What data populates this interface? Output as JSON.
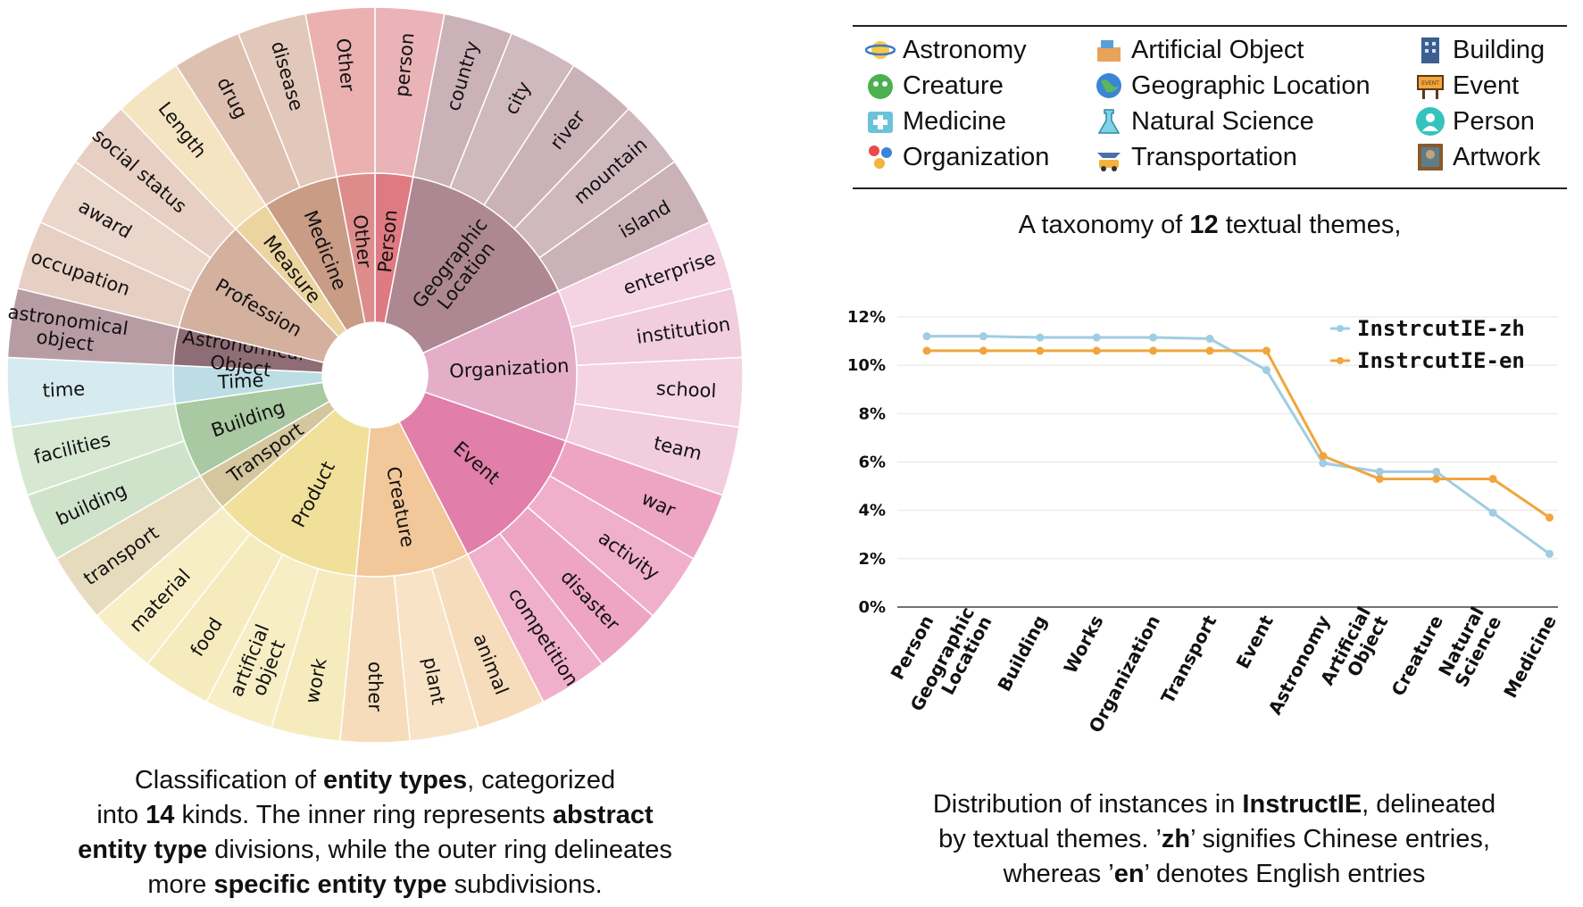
{
  "sunburst": {
    "inner": [
      {
        "label": "Person",
        "value": 1,
        "color": "#df7a82"
      },
      {
        "label": "Geographic\nLocation",
        "value": 5,
        "color": "#ad8791"
      },
      {
        "label": "Organization",
        "value": 4,
        "color": "#e4aec9"
      },
      {
        "label": "Event",
        "value": 4,
        "color": "#e17ea9"
      },
      {
        "label": "Creature",
        "value": 3,
        "color": "#f2c799"
      },
      {
        "label": "Product",
        "value": 4,
        "color": "#f0e09a"
      },
      {
        "label": "Transport",
        "value": 1,
        "color": "#d4c69d"
      },
      {
        "label": "Building",
        "value": 2,
        "color": "#a8c9a1"
      },
      {
        "label": "Time",
        "value": 1,
        "color": "#bcdde4"
      },
      {
        "label": "Astronomical\nObject",
        "value": 1,
        "color": "#8f6d76"
      },
      {
        "label": "Profession",
        "value": 3,
        "color": "#d4b09e"
      },
      {
        "label": "Measure",
        "value": 1,
        "color": "#ecd4a0"
      },
      {
        "label": "Medicine",
        "value": 2,
        "color": "#c99c86"
      },
      {
        "label": "Other",
        "value": 1,
        "color": "#dd8c8c"
      }
    ],
    "outer": [
      {
        "label": "person",
        "color": "#eab3b7"
      },
      {
        "label": "country",
        "color": "#cbb1b8"
      },
      {
        "label": "city",
        "color": "#cfb8be"
      },
      {
        "label": "river",
        "color": "#cbb1b8"
      },
      {
        "label": "mountain",
        "color": "#cfb8be"
      },
      {
        "label": "island",
        "color": "#cbb1b8"
      },
      {
        "label": "enterprise",
        "color": "#f4d3e2"
      },
      {
        "label": "institution",
        "color": "#f1cddd"
      },
      {
        "label": "school",
        "color": "#f4d3e2"
      },
      {
        "label": "team",
        "color": "#f1cddd"
      },
      {
        "label": "war",
        "color": "#eea5c4"
      },
      {
        "label": "activity",
        "color": "#f0b0cb"
      },
      {
        "label": "disaster",
        "color": "#eea5c4"
      },
      {
        "label": "competition",
        "color": "#f0b0cb"
      },
      {
        "label": "animal",
        "color": "#f6dcbb"
      },
      {
        "label": "plant",
        "color": "#f8e3c7"
      },
      {
        "label": "other",
        "color": "#f6dcbb"
      },
      {
        "label": "work",
        "color": "#f5ebbd"
      },
      {
        "label": "artificial\nobject",
        "color": "#f7eec6"
      },
      {
        "label": "food",
        "color": "#f5ebbd"
      },
      {
        "label": "material",
        "color": "#f7eec6"
      },
      {
        "label": "transport",
        "color": "#e6dcbd"
      },
      {
        "label": "building",
        "color": "#cfe3cb"
      },
      {
        "label": "facilities",
        "color": "#d6e8d2"
      },
      {
        "label": "time",
        "color": "#d6ebef"
      },
      {
        "label": "astronomical\nobject",
        "color": "#b89ca4"
      },
      {
        "label": "occupation",
        "color": "#e7cfc3"
      },
      {
        "label": "award",
        "color": "#ebd6cb"
      },
      {
        "label": "social status",
        "color": "#e7cfc3"
      },
      {
        "label": "Length",
        "color": "#f4e4c2"
      },
      {
        "label": "drug",
        "color": "#deC0b1"
      },
      {
        "label": "disease",
        "color": "#e2c8ba"
      },
      {
        "label": "Other",
        "color": "#ebb1b1"
      }
    ]
  },
  "legend": {
    "items": [
      {
        "label": "Astronomy",
        "icon": "astronomy-icon"
      },
      {
        "label": "Artificial Object",
        "icon": "artificial-object-icon"
      },
      {
        "label": "Building",
        "icon": "building-icon"
      },
      {
        "label": "Creature",
        "icon": "creature-icon"
      },
      {
        "label": "Geographic Location",
        "icon": "geographic-location-icon"
      },
      {
        "label": "Event",
        "icon": "event-icon"
      },
      {
        "label": "Medicine",
        "icon": "medicine-icon"
      },
      {
        "label": "Natural Science",
        "icon": "natural-science-icon"
      },
      {
        "label": "Person",
        "icon": "person-icon"
      },
      {
        "label": "Organization",
        "icon": "organization-icon"
      },
      {
        "label": "Transportation",
        "icon": "transportation-icon"
      },
      {
        "label": "Artwork",
        "icon": "artwork-icon"
      }
    ],
    "event_icon_text": "EVENT"
  },
  "captions": {
    "left": {
      "l1a": "Classification of ",
      "l1b": "entity types",
      ", categorized": "",
      "l1c": ", categorized",
      "l2a": "into ",
      "l2b": "14",
      "l2c": " kinds. The inner ring represents ",
      "l2d": "abstract",
      "l3a": "entity type",
      "l3b": " divisions, while the outer ring delineates",
      "l4a": "more ",
      "l4b": "specific entity type",
      "l4c": " subdivisions."
    },
    "taxonomy": {
      "a": "A taxonomy of ",
      "b": "12",
      "c": " textual themes,"
    },
    "right": {
      "l1a": "Distribution of instances in ",
      "l1b": "InstructIE",
      ", delineated": "",
      "l1c": ", delineated",
      "l2a": "by textual themes. ’",
      "l2b": "zh",
      "l2c": "’ signifies Chinese entries,",
      "l3a": "whereas ’",
      "l3b": "en",
      "l3c": "’ denotes English entries"
    }
  },
  "chart_data": {
    "type": "line",
    "categories": [
      "Person",
      "Geographic\nLocation",
      "Building",
      "Works",
      "Organization",
      "Transport",
      "Event",
      "Astronomy",
      "Artificial\nObject",
      "Creature",
      "Natural\nScience",
      "Medicine"
    ],
    "series": [
      {
        "name": "InstrcutIE-zh",
        "color": "#9fcde3",
        "values": [
          11.2,
          11.2,
          11.15,
          11.15,
          11.15,
          11.1,
          9.8,
          5.95,
          5.6,
          5.6,
          3.9,
          2.2
        ]
      },
      {
        "name": "InstrcutIE-en",
        "color": "#f0a63c",
        "values": [
          10.6,
          10.6,
          10.6,
          10.6,
          10.6,
          10.6,
          10.6,
          6.25,
          5.3,
          5.3,
          5.3,
          3.7
        ]
      }
    ],
    "yticks": [
      "0%",
      "2%",
      "4%",
      "6%",
      "8%",
      "10%",
      "12%"
    ],
    "ylim": [
      0,
      12
    ],
    "grid": "horizontal",
    "legend_position": "top-right"
  }
}
